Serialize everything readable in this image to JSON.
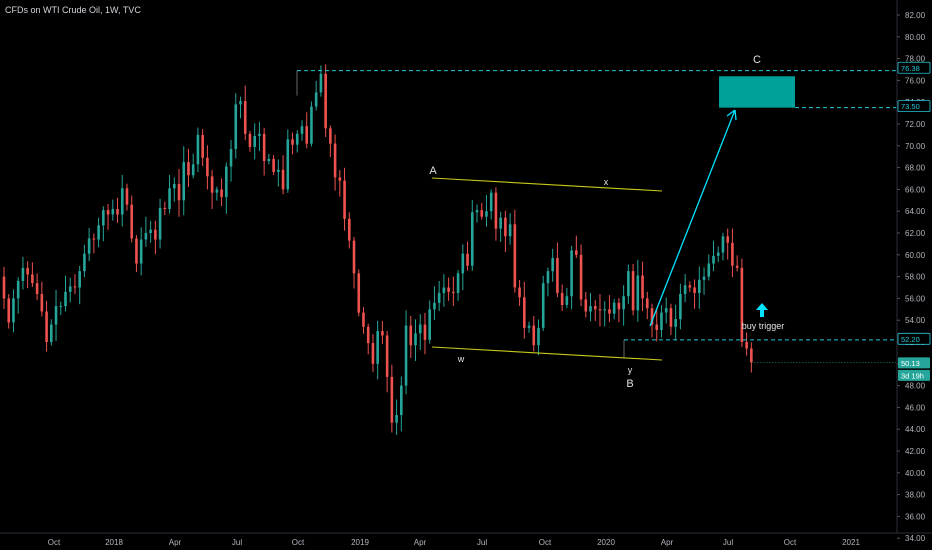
{
  "header": {
    "title": "CFDs on WTI Crude Oil, 1W, TVC"
  },
  "colors": {
    "up": "#26a69a",
    "down": "#ef5350",
    "channel": "#c9c91a",
    "target": "#00a19a",
    "arrow": "#00e5ff",
    "dash": "#26c6da",
    "current": "#26a69a"
  },
  "chart_data": {
    "type": "candlestick",
    "ylim": [
      33.5,
      83
    ],
    "y_ticks": [
      "34.00",
      "36.00",
      "38.00",
      "40.00",
      "42.00",
      "44.00",
      "46.00",
      "48.00",
      "50.00",
      "52.00",
      "54.00",
      "56.00",
      "58.00",
      "60.00",
      "62.00",
      "64.00",
      "66.00",
      "68.00",
      "70.00",
      "72.00",
      "74.00",
      "76.00",
      "78.00",
      "80.00",
      "82.00"
    ],
    "x_ticks": [
      "Oct",
      "2018",
      "Apr",
      "Jul",
      "Oct",
      "2019",
      "Apr",
      "Jul",
      "Oct",
      "2020",
      "Apr",
      "Jul",
      "Oct",
      "2021"
    ],
    "price_badges": [
      {
        "id": "target-high",
        "text": "76.38",
        "style": "outline"
      },
      {
        "id": "target-low",
        "text": "73.50",
        "style": "outline"
      },
      {
        "id": "trigger",
        "text": "52.20",
        "style": "outline"
      },
      {
        "id": "last-price",
        "text": "50.13",
        "style": "filled"
      },
      {
        "id": "countdown",
        "text": "3d 19h",
        "style": "filled"
      }
    ],
    "annotations": [
      {
        "id": "wave-A",
        "text": "A"
      },
      {
        "id": "wave-x",
        "text": "x"
      },
      {
        "id": "wave-w",
        "text": "w"
      },
      {
        "id": "wave-y",
        "text": "y"
      },
      {
        "id": "wave-B",
        "text": "B"
      },
      {
        "id": "wave-C",
        "text": "C"
      },
      {
        "id": "buy-trigger",
        "text": "buy trigger"
      }
    ],
    "levels": {
      "top_dash": 76.9,
      "target_high": 76.38,
      "target_low": 73.5,
      "trigger": 52.2,
      "last": 50.13
    },
    "closes": [
      56.0,
      53.8,
      56.0,
      57.6,
      58.8,
      58.2,
      57.4,
      56.4,
      54.8,
      52.0,
      53.6,
      55.3,
      55.3,
      56.6,
      57.1,
      57.0,
      58.5,
      60.1,
      61.5,
      61.4,
      62.7,
      64.1,
      63.7,
      64.2,
      63.7,
      66.1,
      64.6,
      61.5,
      59.2,
      61.4,
      62.0,
      62.3,
      61.4,
      64.3,
      64.2,
      66.1,
      66.5,
      65.0,
      68.5,
      67.3,
      68.3,
      71.0,
      68.9,
      67.2,
      65.7,
      66.0,
      65.3,
      68.1,
      69.7,
      73.8,
      74.1,
      71.1,
      69.9,
      70.9,
      71.1,
      68.6,
      68.8,
      67.6,
      67.8,
      66.0,
      70.6,
      70.1,
      71.1,
      71.8,
      70.2,
      73.6,
      74.9,
      76.6,
      71.6,
      70.2,
      67.1,
      66.8,
      63.3,
      61.3,
      58.3,
      54.7,
      53.4,
      51.9,
      50.0,
      53.0,
      52.6,
      48.8,
      44.6,
      45.3,
      48.0,
      53.5,
      51.7,
      52.8,
      53.6,
      52.2,
      55.0,
      55.6,
      56.5,
      57.0,
      56.6,
      56.5,
      58.3,
      60.1,
      59.0,
      63.9,
      64.1,
      63.5,
      64.0,
      65.7,
      62.4,
      63.4,
      61.7,
      62.8,
      57.0,
      56.1,
      53.3,
      53.5,
      51.7,
      53.3,
      57.4,
      58.5,
      59.7,
      56.5,
      55.4,
      56.2,
      60.4,
      60.0,
      55.9,
      54.8,
      55.3,
      55.0,
      54.9,
      55.0,
      54.6,
      55.6,
      55.0,
      56.2,
      58.5,
      54.9,
      58.1,
      56.0,
      55.1,
      53.6,
      53.1,
      54.7,
      55.1,
      53.4,
      54.1,
      56.4,
      57.2,
      57.0,
      56.5,
      57.7,
      58.0,
      59.2,
      59.9,
      60.2,
      61.7,
      61.1,
      59.0,
      58.8,
      52.0,
      51.4,
      50.13
    ]
  }
}
